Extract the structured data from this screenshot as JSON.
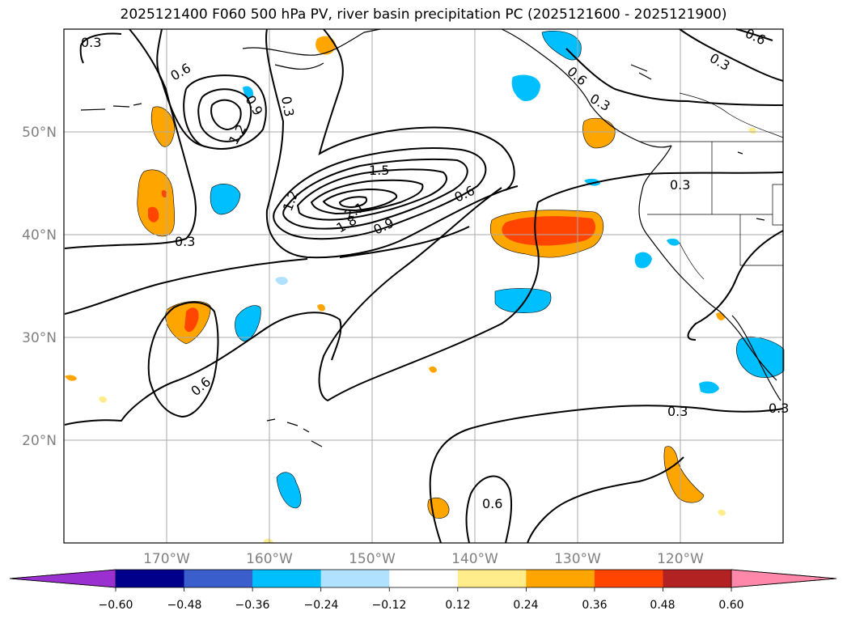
{
  "title": "2025121400 F060 500 hPa PV, river basin precipitation PC (2025121600 - 2025121900)",
  "map": {
    "projection": "PlateCarree",
    "lon_range": [
      -180,
      -110
    ],
    "lat_range": [
      10,
      60
    ],
    "gridlines": true,
    "lon_labels": [
      "170°W",
      "160°W",
      "150°W",
      "140°W",
      "130°W",
      "120°W"
    ],
    "lat_labels": [
      "50°N",
      "40°N",
      "30°N",
      "20°N"
    ]
  },
  "contour_labels": [
    "0.3",
    "0.6",
    "0.9",
    "1.2",
    "0.3",
    "1.5",
    "1.2",
    "2.1",
    "1.8",
    "0.9",
    "0.6",
    "0.3",
    "0.3",
    "0.6",
    "0.3",
    "0.3",
    "0.6",
    "0.3",
    "0.6",
    "0.3",
    "0.6"
  ],
  "colorbar": {
    "colors": [
      "#9b30d0",
      "#00008b",
      "#3a5fcd",
      "#00bfff",
      "#b0e2ff",
      "#ffffff",
      "#ffec8b",
      "#ffa500",
      "#ff4500",
      "#b22222",
      "#ff88aa"
    ],
    "ticks": [
      "−0.60",
      "−0.48",
      "−0.36",
      "−0.24",
      "−0.12",
      "0.12",
      "0.24",
      "0.36",
      "0.48",
      "0.60"
    ],
    "extend": "both"
  }
}
